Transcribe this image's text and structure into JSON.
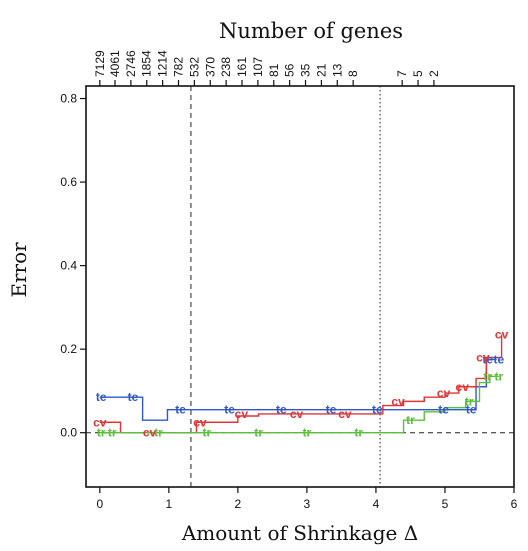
{
  "chart_data": {
    "type": "line",
    "title": "Number of genes",
    "xlabel": "Amount of Shrinkage Δ",
    "ylabel": "Error",
    "xlim": [
      -0.2,
      6.0
    ],
    "ylim": [
      -0.13,
      0.83
    ],
    "x_ticks": [
      0,
      1,
      2,
      3,
      4,
      5,
      6
    ],
    "y_ticks": [
      0.0,
      0.2,
      0.4,
      0.6,
      0.8
    ],
    "y_tick_labels": [
      "0.0",
      "0.2",
      "0.4",
      "0.6",
      "0.8"
    ],
    "top_axis_ticks": [
      {
        "x": 0.0,
        "label": "7129"
      },
      {
        "x": 0.22,
        "label": "4061"
      },
      {
        "x": 0.45,
        "label": "2746"
      },
      {
        "x": 0.68,
        "label": "1854"
      },
      {
        "x": 0.91,
        "label": "1214"
      },
      {
        "x": 1.14,
        "label": "782"
      },
      {
        "x": 1.37,
        "label": "532"
      },
      {
        "x": 1.6,
        "label": "370"
      },
      {
        "x": 1.83,
        "label": "238"
      },
      {
        "x": 2.06,
        "label": "161"
      },
      {
        "x": 2.29,
        "label": "107"
      },
      {
        "x": 2.52,
        "label": "81"
      },
      {
        "x": 2.75,
        "label": "56"
      },
      {
        "x": 2.98,
        "label": "35"
      },
      {
        "x": 3.21,
        "label": "21"
      },
      {
        "x": 3.44,
        "label": "13"
      },
      {
        "x": 3.67,
        "label": "8"
      },
      {
        "x": 4.38,
        "label": "7"
      },
      {
        "x": 4.61,
        "label": "5"
      },
      {
        "x": 4.84,
        "label": "2"
      }
    ],
    "vlines": [
      {
        "x": 1.32,
        "style": "dashed"
      },
      {
        "x": 4.06,
        "style": "dotted"
      }
    ],
    "hline": {
      "y": 0.0,
      "style": "dashed"
    },
    "series": [
      {
        "name": "te",
        "color": "#2f57c9",
        "x": [
          0.0,
          0.3,
          0.55,
          0.62,
          0.82,
          0.98,
          1.1,
          1.3,
          1.5,
          1.75,
          2.0,
          2.3,
          2.6,
          2.9,
          3.2,
          3.5,
          3.8,
          4.06,
          4.3,
          4.6,
          4.9,
          5.05,
          5.3,
          5.45,
          5.6,
          5.75
        ],
        "y": [
          0.085,
          0.085,
          0.085,
          0.03,
          0.03,
          0.055,
          0.055,
          0.055,
          0.055,
          0.055,
          0.055,
          0.055,
          0.055,
          0.055,
          0.055,
          0.055,
          0.055,
          0.055,
          0.055,
          0.055,
          0.055,
          0.055,
          0.055,
          0.11,
          0.175,
          0.175
        ]
      },
      {
        "name": "cv",
        "color": "#e23434",
        "x": [
          0.0,
          0.25,
          0.3,
          0.75,
          0.9,
          1.4,
          1.8,
          2.0,
          2.3,
          2.6,
          2.9,
          3.2,
          3.5,
          3.8,
          4.06,
          4.1,
          4.4,
          4.7,
          5.0,
          5.2,
          5.45,
          5.6,
          5.75,
          5.82
        ],
        "y": [
          0.025,
          0.025,
          0.0,
          0.0,
          0.0,
          0.025,
          0.025,
          0.04,
          0.045,
          0.045,
          0.045,
          0.045,
          0.045,
          0.045,
          0.045,
          0.065,
          0.075,
          0.085,
          0.095,
          0.11,
          0.13,
          0.18,
          0.18,
          0.235
        ]
      },
      {
        "name": "tr",
        "color": "#5cbf3c",
        "x": [
          0.0,
          0.2,
          0.4,
          0.7,
          1.1,
          1.4,
          1.8,
          2.2,
          2.6,
          3.0,
          3.4,
          3.8,
          4.1,
          4.4,
          4.7,
          5.0,
          5.3,
          5.5,
          5.65,
          5.78
        ],
        "y": [
          0.0,
          0.0,
          0.0,
          0.0,
          0.0,
          0.0,
          0.0,
          0.0,
          0.0,
          0.0,
          0.0,
          0.0,
          0.0,
          0.03,
          0.05,
          0.06,
          0.075,
          0.12,
          0.135,
          0.135
        ]
      }
    ],
    "markers": [
      {
        "series": "te",
        "label": "te",
        "x": 0.02,
        "y": 0.085
      },
      {
        "series": "te",
        "label": "te",
        "x": 0.48,
        "y": 0.085
      },
      {
        "series": "te",
        "label": "te",
        "x": 1.17,
        "y": 0.055
      },
      {
        "series": "te",
        "label": "te",
        "x": 1.88,
        "y": 0.055
      },
      {
        "series": "te",
        "label": "te",
        "x": 2.63,
        "y": 0.055
      },
      {
        "series": "te",
        "label": "te",
        "x": 3.35,
        "y": 0.055
      },
      {
        "series": "te",
        "label": "te",
        "x": 4.02,
        "y": 0.055
      },
      {
        "series": "te",
        "label": "te",
        "x": 4.98,
        "y": 0.055
      },
      {
        "series": "te",
        "label": "te",
        "x": 5.38,
        "y": 0.055
      },
      {
        "series": "te",
        "label": "te",
        "x": 5.62,
        "y": 0.175
      },
      {
        "series": "te",
        "label": "te",
        "x": 5.78,
        "y": 0.175
      },
      {
        "series": "cv",
        "label": "cv",
        "x": 0.0,
        "y": 0.025
      },
      {
        "series": "cv",
        "label": "cv",
        "x": 0.72,
        "y": 0.0
      },
      {
        "series": "cv",
        "label": "cv",
        "x": 1.45,
        "y": 0.025
      },
      {
        "series": "cv",
        "label": "cv",
        "x": 2.05,
        "y": 0.045
      },
      {
        "series": "cv",
        "label": "cv",
        "x": 2.85,
        "y": 0.045
      },
      {
        "series": "cv",
        "label": "cv",
        "x": 3.55,
        "y": 0.045
      },
      {
        "series": "cv",
        "label": "cv",
        "x": 4.32,
        "y": 0.075
      },
      {
        "series": "cv",
        "label": "cv",
        "x": 4.98,
        "y": 0.095
      },
      {
        "series": "cv",
        "label": "cv",
        "x": 5.25,
        "y": 0.11
      },
      {
        "series": "cv",
        "label": "cv",
        "x": 5.55,
        "y": 0.18
      },
      {
        "series": "cv",
        "label": "cv",
        "x": 5.82,
        "y": 0.235
      },
      {
        "series": "tr",
        "label": "tr",
        "x": 0.02,
        "y": 0.0
      },
      {
        "series": "tr",
        "label": "tr",
        "x": 0.18,
        "y": 0.0
      },
      {
        "series": "tr",
        "label": "tr",
        "x": 0.85,
        "y": 0.0
      },
      {
        "series": "tr",
        "label": "tr",
        "x": 1.55,
        "y": 0.0
      },
      {
        "series": "tr",
        "label": "tr",
        "x": 2.3,
        "y": 0.0
      },
      {
        "series": "tr",
        "label": "tr",
        "x": 3.0,
        "y": 0.0
      },
      {
        "series": "tr",
        "label": "tr",
        "x": 3.75,
        "y": 0.0
      },
      {
        "series": "tr",
        "label": "tr",
        "x": 4.5,
        "y": 0.03
      },
      {
        "series": "tr",
        "label": "tr",
        "x": 5.35,
        "y": 0.075
      },
      {
        "series": "tr",
        "label": "tr",
        "x": 5.62,
        "y": 0.135
      },
      {
        "series": "tr",
        "label": "tr",
        "x": 5.78,
        "y": 0.135
      }
    ]
  }
}
